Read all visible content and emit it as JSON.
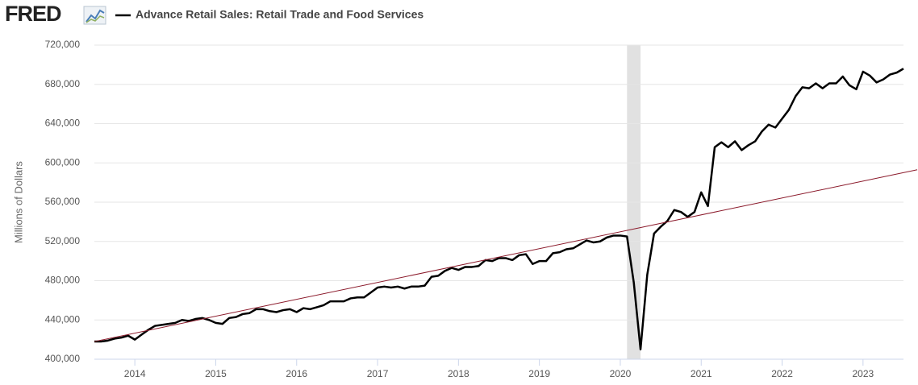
{
  "chart_data": {
    "type": "line",
    "brand": "FRED",
    "title": "Advance Retail Sales: Retail Trade and Food Services",
    "ylabel": "Millions of Dollars",
    "xlim": [
      2013.5,
      2023.5
    ],
    "xticks": [
      2014,
      2015,
      2016,
      2017,
      2018,
      2019,
      2020,
      2021,
      2022,
      2023
    ],
    "ylim": [
      400000,
      720000
    ],
    "yticks": [
      {
        "value": 400000,
        "label": "400,000"
      },
      {
        "value": 440000,
        "label": "440,000"
      },
      {
        "value": 480000,
        "label": "480,000"
      },
      {
        "value": 520000,
        "label": "520,000"
      },
      {
        "value": 560000,
        "label": "560,000"
      },
      {
        "value": 600000,
        "label": "600,000"
      },
      {
        "value": 640000,
        "label": "640,000"
      },
      {
        "value": 680000,
        "label": "680,000"
      },
      {
        "value": 720000,
        "label": "720,000"
      }
    ],
    "grid": true,
    "recessions": [
      [
        2020.083,
        2020.25
      ]
    ],
    "recession_color": "#e1e1e1",
    "x": [
      2013.5,
      2013.583,
      2013.667,
      2013.75,
      2013.833,
      2013.917,
      2014.0,
      2014.083,
      2014.167,
      2014.25,
      2014.333,
      2014.417,
      2014.5,
      2014.583,
      2014.667,
      2014.75,
      2014.833,
      2014.917,
      2015.0,
      2015.083,
      2015.167,
      2015.25,
      2015.333,
      2015.417,
      2015.5,
      2015.583,
      2015.667,
      2015.75,
      2015.833,
      2015.917,
      2016.0,
      2016.083,
      2016.167,
      2016.25,
      2016.333,
      2016.417,
      2016.5,
      2016.583,
      2016.667,
      2016.75,
      2016.833,
      2016.917,
      2017.0,
      2017.083,
      2017.167,
      2017.25,
      2017.333,
      2017.417,
      2017.5,
      2017.583,
      2017.667,
      2017.75,
      2017.833,
      2017.917,
      2018.0,
      2018.083,
      2018.167,
      2018.25,
      2018.333,
      2018.417,
      2018.5,
      2018.583,
      2018.667,
      2018.75,
      2018.833,
      2018.917,
      2019.0,
      2019.083,
      2019.167,
      2019.25,
      2019.333,
      2019.417,
      2019.5,
      2019.583,
      2019.667,
      2019.75,
      2019.833,
      2019.917,
      2020.0,
      2020.083,
      2020.167,
      2020.25,
      2020.333,
      2020.417,
      2020.5,
      2020.583,
      2020.667,
      2020.75,
      2020.833,
      2020.917,
      2021.0,
      2021.083,
      2021.167,
      2021.25,
      2021.333,
      2021.417,
      2021.5,
      2021.583,
      2021.667,
      2021.75,
      2021.833,
      2021.917,
      2022.0,
      2022.083,
      2022.167,
      2022.25,
      2022.333,
      2022.417,
      2022.5,
      2022.583,
      2022.667,
      2022.75,
      2022.833,
      2022.917,
      2023.0,
      2023.083,
      2023.167,
      2023.25,
      2023.333,
      2023.417,
      2023.5
    ],
    "series": [
      {
        "name": "Advance Retail Sales: Retail Trade and Food Services",
        "color": "#000000",
        "values": [
          418000,
          418000,
          419000,
          421000,
          422000,
          424000,
          420000,
          425000,
          430000,
          434000,
          435000,
          436000,
          437000,
          440000,
          439000,
          441000,
          442000,
          440000,
          437000,
          436000,
          442000,
          443000,
          446000,
          447000,
          451000,
          451000,
          449000,
          448000,
          450000,
          451000,
          448000,
          452000,
          451000,
          453000,
          455000,
          459000,
          459000,
          459000,
          462000,
          463000,
          463000,
          468000,
          473000,
          474000,
          473000,
          474000,
          472000,
          474000,
          474000,
          475000,
          484000,
          485000,
          490000,
          493000,
          491000,
          494000,
          494000,
          495000,
          501000,
          500000,
          503000,
          503000,
          501000,
          506000,
          507000,
          497000,
          500000,
          500000,
          508000,
          509000,
          512000,
          513000,
          517000,
          521000,
          519000,
          520000,
          524000,
          526000,
          526000,
          525000,
          478000,
          410000,
          486000,
          528000,
          535000,
          541000,
          552000,
          550000,
          545000,
          550000,
          570000,
          556000,
          616000,
          621000,
          616000,
          622000,
          613000,
          618000,
          622000,
          632000,
          639000,
          636000,
          645000,
          654000,
          668000,
          677000,
          676000,
          681000,
          676000,
          681000,
          681000,
          688000,
          679000,
          675000,
          693000,
          689000,
          682000,
          685000,
          690000,
          692000,
          696000
        ]
      }
    ],
    "trend_line": {
      "color": "#8b1a2b",
      "x": [
        2013.5,
        2023.67
      ],
      "values": [
        418000,
        593000
      ]
    }
  }
}
